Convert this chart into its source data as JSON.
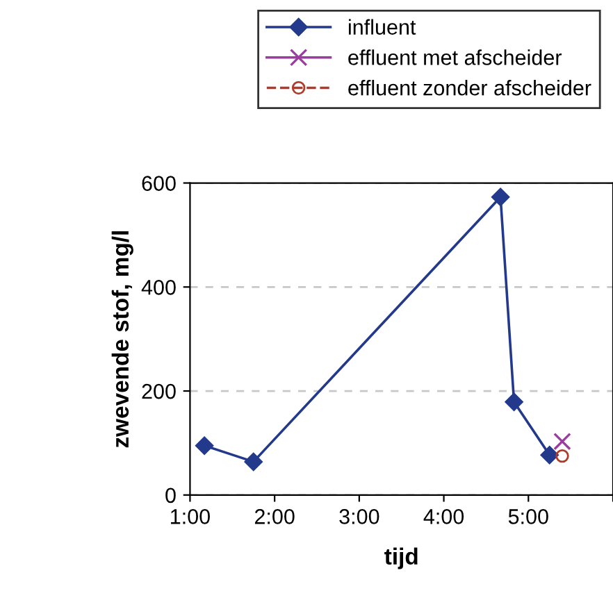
{
  "chart_data": {
    "type": "line",
    "xlabel": "tijd",
    "ylabel": "zwevende stof, mg/l",
    "xlim": [
      1,
      6
    ],
    "xticks": [
      {
        "value": 1,
        "label": "1:00"
      },
      {
        "value": 2,
        "label": "2:00"
      },
      {
        "value": 3,
        "label": "3:00"
      },
      {
        "value": 4,
        "label": "4:00"
      },
      {
        "value": 5,
        "label": "5:00"
      },
      {
        "value": 6,
        "label": null
      }
    ],
    "ylim": [
      0,
      600
    ],
    "yticks": [
      0,
      200,
      400,
      600
    ],
    "grid": "y",
    "legend": "top",
    "series": [
      {
        "name": "influent",
        "color": "#233a8c",
        "marker": "diamond",
        "line_style": "solid",
        "x": [
          1.17,
          1.75,
          4.67,
          4.83,
          5.25
        ],
        "values": [
          95,
          64,
          573,
          179,
          77
        ]
      },
      {
        "name": "effluent met afscheider",
        "color": "#9b3ca0",
        "marker": "cross",
        "line_style": "solid",
        "x": [
          5.4
        ],
        "values": [
          103
        ]
      },
      {
        "name": "effluent zonder afscheider",
        "color": "#b23a2a",
        "marker": "circle",
        "line_style": "dashed",
        "x": [
          5.4
        ],
        "values": [
          75
        ]
      }
    ]
  }
}
